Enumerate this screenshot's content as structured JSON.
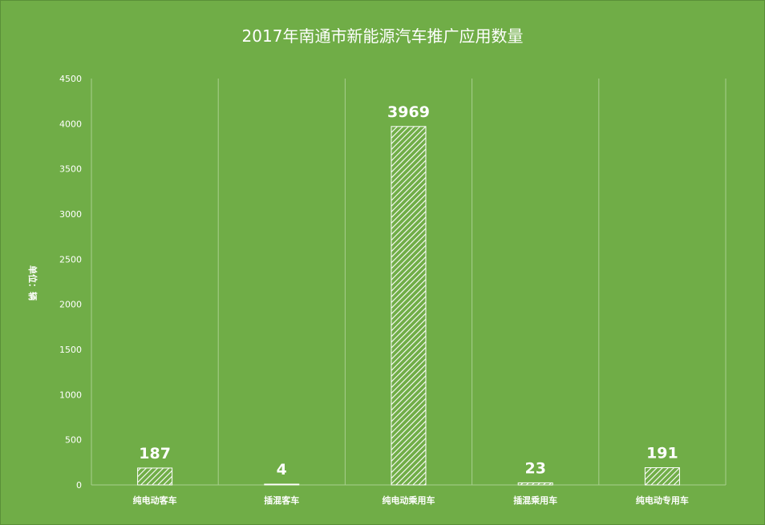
{
  "chart_data": {
    "type": "bar",
    "title": "2017年南通市新能源汽车推广应用数量",
    "ylabel": "单位：辆",
    "xlabel": "",
    "categories": [
      "纯电动客车",
      "插混客车",
      "纯电动乘用车",
      "插混乘用车",
      "纯电动专用车"
    ],
    "values": [
      187,
      4,
      3969,
      23,
      191
    ],
    "ylim": [
      0,
      4500
    ],
    "yticks": [
      0,
      500,
      1000,
      1500,
      2000,
      2500,
      3000,
      3500,
      4000,
      4500
    ],
    "grid": "vertical separators",
    "legend": "none",
    "bar_fill": "diagonal hatch",
    "colors": {
      "background": "#70ad47",
      "bar": "#ffffff",
      "text": "#ffffff",
      "grid": "#a9cf8f"
    }
  }
}
